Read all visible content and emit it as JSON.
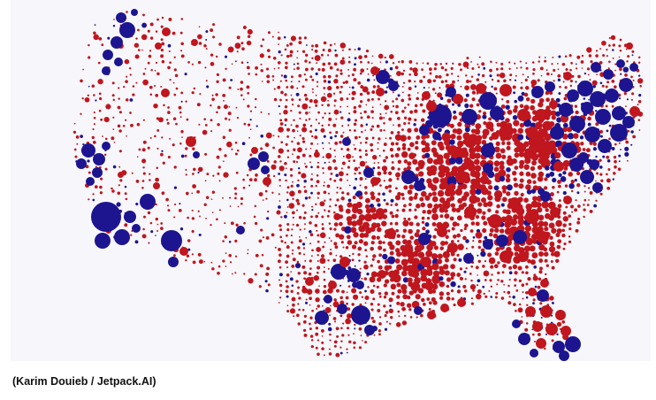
{
  "caption": "(Karim Douieb / Jetpack.AI)",
  "colors": {
    "red": "#c0161e",
    "blue": "#1d1590",
    "background": "#f7f7fb"
  }
}
